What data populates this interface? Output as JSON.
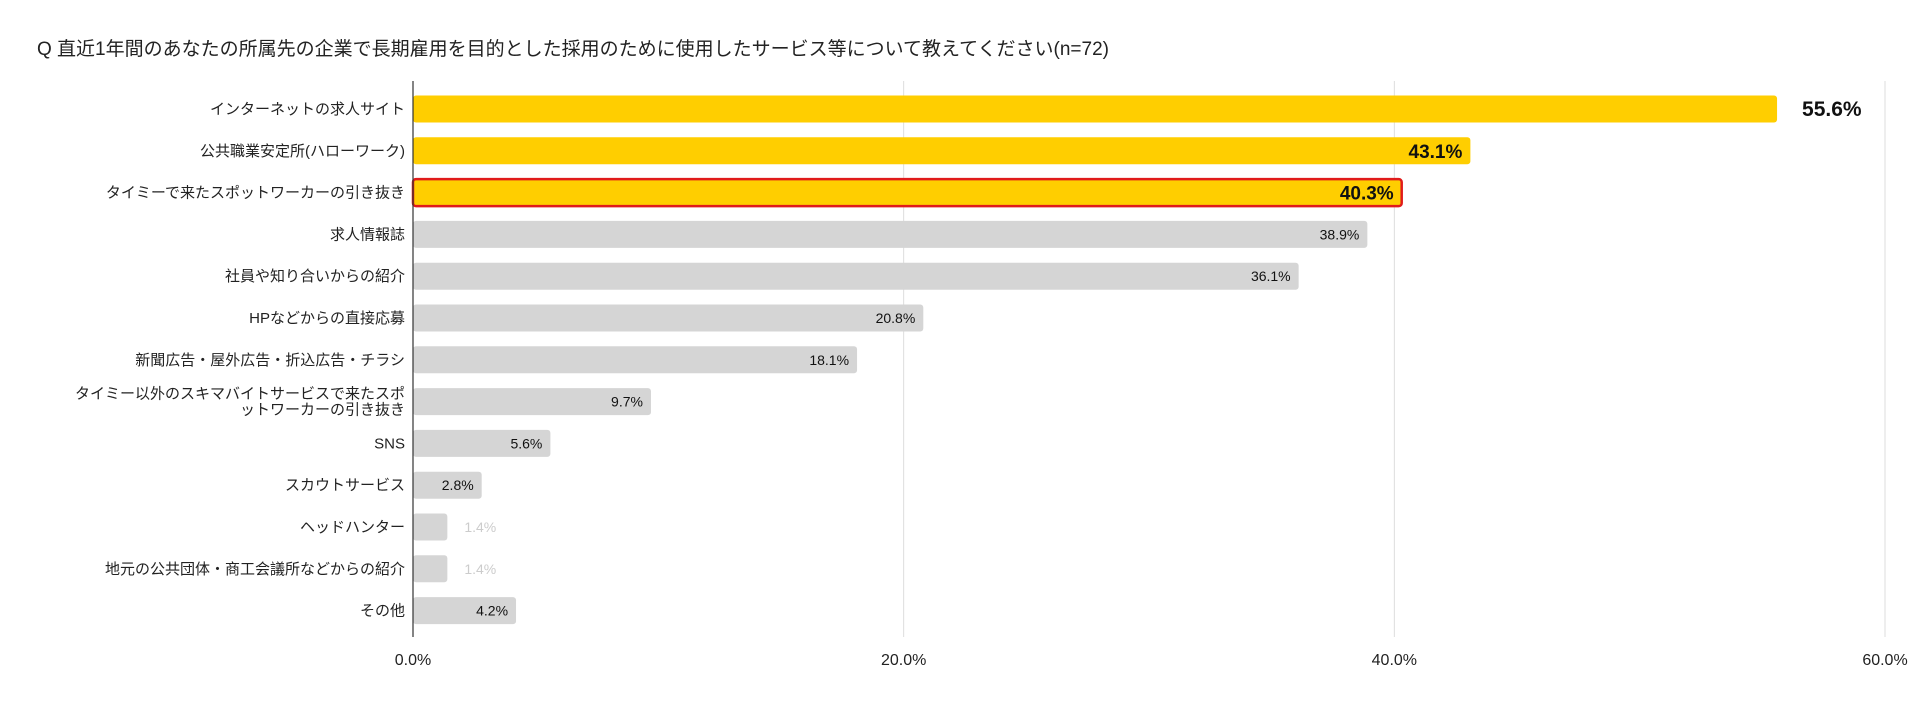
{
  "chart_data": {
    "type": "bar",
    "orientation": "horizontal",
    "title": "Q 直近1年間のあなたの所属先の企業で長期雇用を目的とした採用のために使用したサービス等について教えてください(n=72)",
    "categories": [
      "インターネットの求人サイト",
      "公共職業安定所(ハローワーク)",
      "タイミーで来たスポットワーカーの引き抜き",
      "求人情報誌",
      "社員や知り合いからの紹介",
      "HPなどからの直接応募",
      "新聞広告・屋外広告・折込広告・チラシ",
      "タイミー以外のスキマバイトサービスで来たスポットワーカーの引き抜き",
      "SNS",
      "スカウトサービス",
      "ヘッドハンター",
      "地元の公共団体・商工会議所などからの紹介",
      "その他"
    ],
    "category_lines": [
      [
        "インターネットの求人サイト"
      ],
      [
        "公共職業安定所(ハローワーク)"
      ],
      [
        "タイミーで来たスポットワーカーの引き抜き"
      ],
      [
        "求人情報誌"
      ],
      [
        "社員や知り合いからの紹介"
      ],
      [
        "HPなどからの直接応募"
      ],
      [
        "新聞広告・屋外広告・折込広告・チラシ"
      ],
      [
        "タイミー以外のスキマバイトサービスで来たスポ",
        "ットワーカーの引き抜き"
      ],
      [
        "SNS"
      ],
      [
        "スカウトサービス"
      ],
      [
        "ヘッドハンター"
      ],
      [
        "地元の公共団体・商工会議所などからの紹介"
      ],
      [
        "その他"
      ]
    ],
    "values": [
      55.6,
      43.1,
      40.3,
      38.9,
      36.1,
      20.8,
      18.1,
      9.7,
      5.6,
      2.8,
      1.4,
      1.4,
      4.2
    ],
    "labels": [
      "55.6%",
      "43.1%",
      "40.3%",
      "38.9%",
      "36.1%",
      "20.8%",
      "18.1%",
      "9.7%",
      "5.6%",
      "2.8%",
      "1.4%",
      "1.4%",
      "4.2%"
    ],
    "highlighted": [
      true,
      true,
      true,
      false,
      false,
      false,
      false,
      false,
      false,
      false,
      false,
      false,
      false
    ],
    "outlined_index": 2,
    "xlim": [
      0,
      60
    ],
    "xticks": [
      0,
      20,
      40,
      60
    ],
    "xtick_labels": [
      "0.0%",
      "20.0%",
      "40.0%",
      "60.0%"
    ],
    "grid": true,
    "colors": {
      "highlight": "#FFCE00",
      "normal": "#D5D5D5",
      "outline": "#E01B1B",
      "grid": "#DDDDDD",
      "faint_label": "#CCCCCC"
    }
  }
}
